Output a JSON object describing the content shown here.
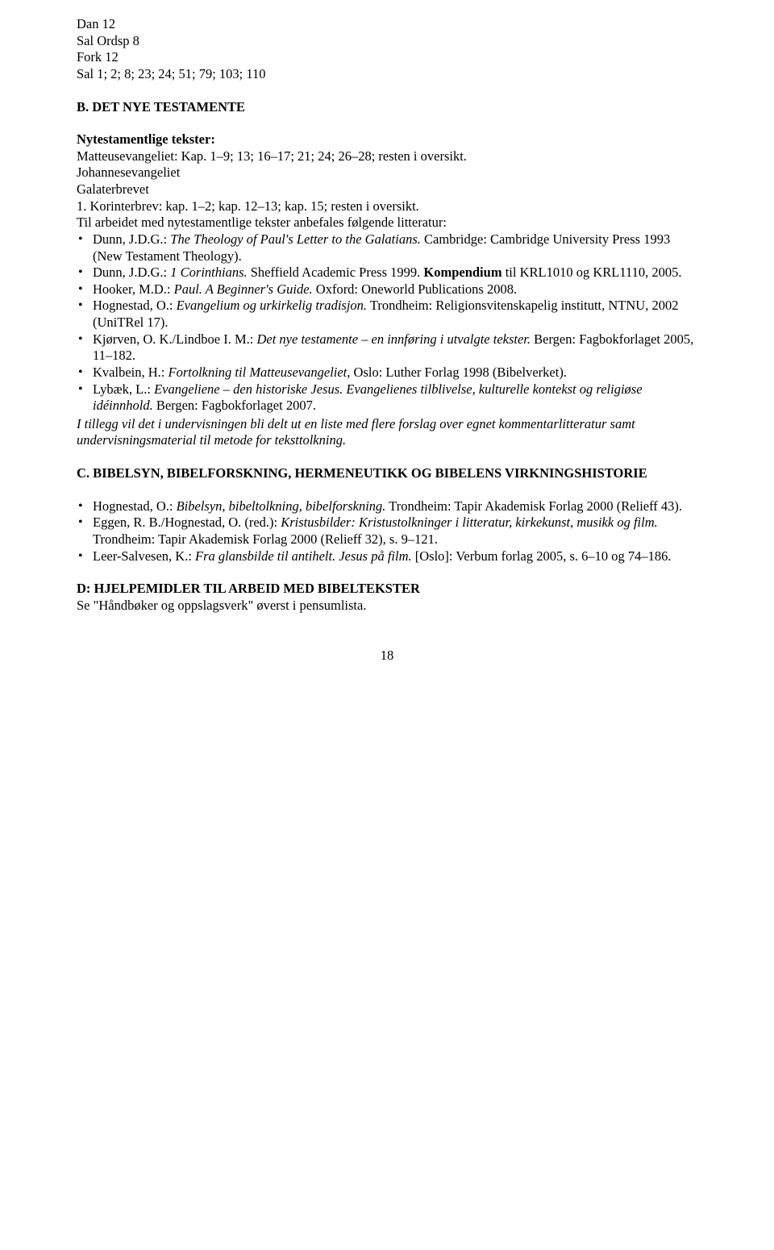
{
  "top_lines": [
    "Dan 12",
    "Sal Ordsp 8",
    "Fork 12",
    "Sal 1; 2; 8; 23; 24; 51; 79; 103; 110"
  ],
  "section_b": {
    "heading": "B. DET NYE TESTAMENTE",
    "sub_bold": "Nytestamentlige tekster:",
    "lines": [
      "Matteusevangeliet: Kap. 1–9; 13; 16–17; 21; 24; 26–28; resten i oversikt.",
      "Johannesevangeliet",
      "Galaterbrevet",
      "1. Korinterbrev: kap. 1–2; kap. 12–13; kap. 15; resten i oversikt."
    ],
    "intro": "Til arbeidet med nytestamentlige tekster anbefales følgende litteratur:",
    "items": [
      {
        "pre": "Dunn, J.D.G.: ",
        "em": "The Theology of Paul's Letter to the Galatians.",
        "post": " Cambridge: Cambridge University Press 1993 (New Testament Theology)."
      },
      {
        "pre": "Dunn, J.D.G.: ",
        "em": "1 Corinthians.",
        "post": " Sheffield Academic Press 1999. ",
        "bold": "Kompendium",
        "post2": " til KRL1010 og KRL1110, 2005."
      },
      {
        "pre": "Hooker, M.D.: ",
        "em": "Paul. A Beginner's Guide.",
        "post": " Oxford: Oneworld Publications 2008."
      },
      {
        "pre": "Hognestad, O.: ",
        "em": "Evangelium og urkirkelig tradisjon.",
        "post": " Trondheim: Religionsvitenskapelig institutt, NTNU, 2002 (UniTRel 17)."
      },
      {
        "pre": "Kjørven, O. K./Lindboe I. M.: ",
        "em": "Det nye testamente – en innføring i utvalgte tekster.",
        "post": " Bergen: Fagbokforlaget 2005, 11–182."
      },
      {
        "pre": "Kvalbein, H.: ",
        "em": "Fortolkning til Matteusevangeliet,",
        "post": " Oslo: Luther Forlag 1998 (Bibelverket)."
      },
      {
        "pre": "Lybæk, L.: ",
        "em": "Evangeliene – den historiske Jesus. Evangelienes tilblivelse, kulturelle kontekst og religiøse idéinnhold.",
        "post": " Bergen: Fagbokforlaget 2007."
      }
    ],
    "notice": "I tillegg vil det i undervisningen bli delt ut en liste med flere forslag over egnet kommentarlitteratur samt undervisningsmaterial til metode for teksttolkning."
  },
  "section_c": {
    "heading": "C. BIBELSYN, BIBELFORSKNING, HERMENEUTIKK OG BIBELENS VIRKNINGSHISTORIE",
    "items": [
      {
        "pre": "Hognestad, O.: ",
        "em": "Bibelsyn, bibeltolkning, bibelforskning.",
        "post": " Trondheim: Tapir Akademisk Forlag 2000 (Relieff 43)."
      },
      {
        "pre": "Eggen, R. B./Hognestad, O. (red.): ",
        "em": "Kristusbilder: Kristustolkninger i litteratur, kirkekunst, musikk og film.",
        "post": " Trondheim: Tapir Akademisk Forlag 2000 (Relieff 32), s. 9–121."
      },
      {
        "pre": "Leer-Salvesen, K.: ",
        "em": "Fra glansbilde til antihelt. Jesus på film.",
        "post": " [Oslo]: Verbum forlag 2005, s. 6–10 og 74–186."
      }
    ]
  },
  "section_d": {
    "heading": "D: HJELPEMIDLER TIL ARBEID MED BIBELTEKSTER",
    "line": "Se \"Håndbøker og oppslagsverk\" øverst i pensumlista."
  },
  "page_number": "18"
}
